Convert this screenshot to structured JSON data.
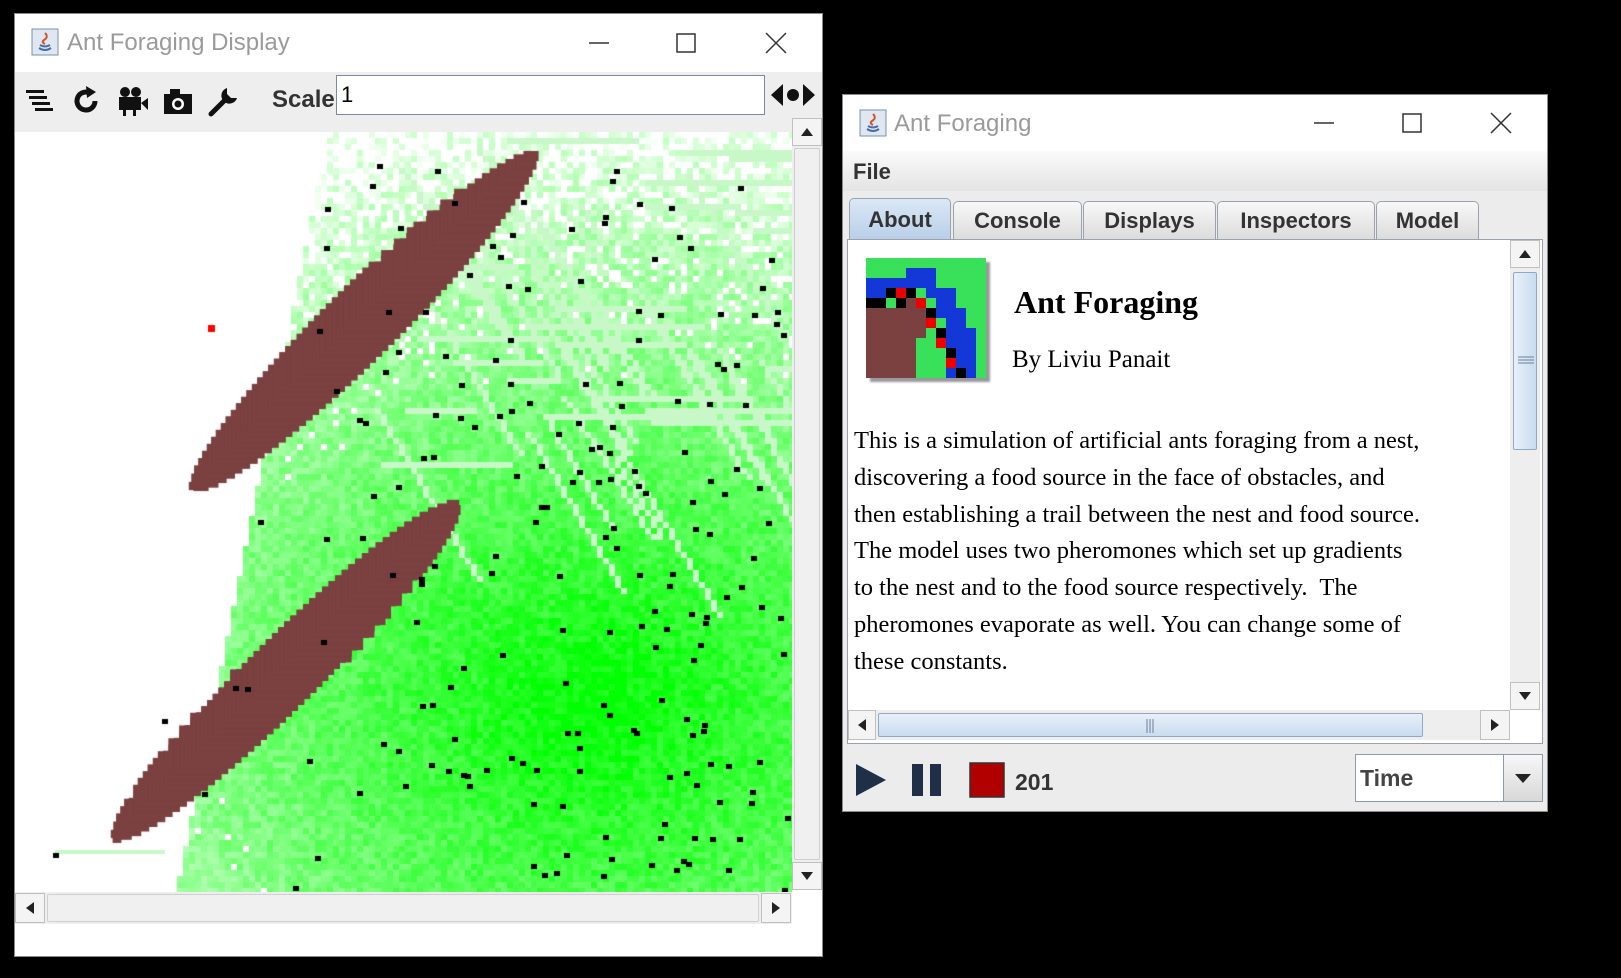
{
  "display_window": {
    "title": "Ant Foraging Display",
    "toolbar": {
      "layers_icon": "layers-icon",
      "refresh_icon": "refresh-icon",
      "movie_icon": "movie-camera-icon",
      "snapshot_icon": "camera-icon",
      "options_icon": "wrench-icon",
      "scale_label": "Scale:",
      "scale_value": "1",
      "scale_drag_icon": "scale-arrows-icon"
    }
  },
  "controller_window": {
    "title": "Ant Foraging",
    "menu": {
      "file": "File"
    },
    "tabs": [
      {
        "label": "About",
        "active": true
      },
      {
        "label": "Console",
        "active": false
      },
      {
        "label": "Displays",
        "active": false
      },
      {
        "label": "Inspectors",
        "active": false
      },
      {
        "label": "Model",
        "active": false
      }
    ],
    "about": {
      "title": "Ant Foraging",
      "author": "By Liviu Panait",
      "lines": [
        "This is a simulation of artificial ants foraging from a nest,",
        "discovering a food source in the face of obstacles, and",
        "then establishing a trail between the nest and food source.",
        "The model uses two pheromones which set up gradients",
        "to the nest and to the food source respectively.  The",
        "pheromones evaporate as well. You can change some of",
        "these constants."
      ]
    },
    "controls": {
      "play_icon": "play-icon",
      "pause_icon": "pause-icon",
      "stop_icon": "stop-icon",
      "steps": "201",
      "time_mode": "Time"
    }
  },
  "colors": {
    "obstacle": "#7b4040",
    "pheromone": "#00ff00",
    "ant": "#000000",
    "food": "#ff0000",
    "stop_button": "#b00000"
  }
}
